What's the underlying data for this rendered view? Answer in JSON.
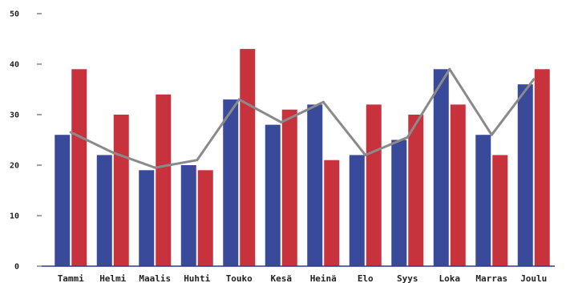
{
  "chart_data": {
    "type": "bar",
    "title": "",
    "xlabel": "",
    "ylabel": "",
    "categories": [
      "Tammi",
      "Helmi",
      "Maalis",
      "Huhti",
      "Touko",
      "Kesä",
      "Heinä",
      "Elo",
      "Syys",
      "Loka",
      "Marras",
      "Joulu"
    ],
    "ylim": [
      0,
      50
    ],
    "yticks": [
      "0",
      "10",
      "20",
      "30",
      "40",
      "50"
    ],
    "series": [
      {
        "type": "bar",
        "color": "#3a4a9a",
        "values": [
          26,
          22,
          19,
          20,
          33,
          28,
          32,
          22,
          25,
          39,
          26,
          36
        ]
      },
      {
        "type": "bar",
        "color": "#c8323c",
        "values": [
          39,
          30,
          34,
          19,
          43,
          31,
          21,
          32,
          30,
          32,
          22,
          39
        ]
      },
      {
        "type": "line",
        "color": "#8a8a8a",
        "values": [
          26.5,
          22.5,
          19.5,
          21,
          33,
          28.5,
          32.5,
          22,
          25.5,
          39,
          26,
          37
        ]
      }
    ],
    "grid": false,
    "legend": "none"
  }
}
